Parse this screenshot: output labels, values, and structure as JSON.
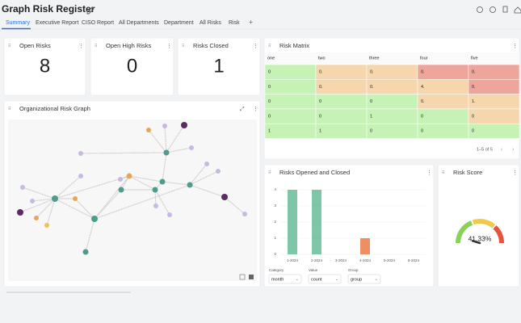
{
  "header": {
    "title": "Graph Risk Register"
  },
  "tabs": [
    "Summary",
    "Executive Report",
    "CISO Report",
    "All Departments",
    "Department",
    "All Risks",
    "Risk"
  ],
  "kpis": [
    {
      "title": "Open Risks",
      "value": 8
    },
    {
      "title": "Open High Risks",
      "value": 0
    },
    {
      "title": "Risks Closed",
      "value": 1
    }
  ],
  "risk_matrix": {
    "title": "Risk Matrix",
    "columns": [
      "one",
      "two",
      "three",
      "four",
      "five"
    ],
    "rows": [
      [
        "0",
        "0.",
        "0.",
        "0.",
        "0."
      ],
      [
        "0",
        "0.",
        "0.",
        "4.",
        "0."
      ],
      [
        "0",
        "0",
        "0",
        "0.",
        "1."
      ],
      [
        "0",
        "0",
        "1",
        "0",
        "0"
      ],
      [
        "1",
        "1",
        "0",
        "0",
        "0"
      ]
    ],
    "colors": [
      [
        "#c7f2b6",
        "#f6d7ad",
        "#f6d7ad",
        "#eea59c",
        "#eea59c"
      ],
      [
        "#c7f2b6",
        "#f6d7ad",
        "#f6d7ad",
        "#f6d7ad",
        "#eea59c"
      ],
      [
        "#c7f2b6",
        "#c7f2b6",
        "#c7f2b6",
        "#f6d7ad",
        "#f6d7ad"
      ],
      [
        "#c7f2b6",
        "#c7f2b6",
        "#c7f2b6",
        "#c7f2b6",
        "#f6d7ad"
      ],
      [
        "#c7f2b6",
        "#c7f2b6",
        "#c7f2b6",
        "#c7f2b6",
        "#c7f2b6"
      ]
    ],
    "pagination": "1–5 of 5"
  },
  "graph": {
    "title": "Organizational Risk Graph"
  },
  "chart_data": {
    "type": "bar",
    "title": "Risks Opened and Closed",
    "categories": [
      "1-2024",
      "2-2024",
      "3-2024",
      "4-2024",
      "5-2024",
      "6-2024"
    ],
    "series": [
      {
        "color": "#7fc6a8",
        "values": [
          4,
          4,
          null,
          null,
          null,
          null
        ]
      },
      {
        "color": "#ec8f62",
        "values": [
          null,
          null,
          null,
          1,
          null,
          null
        ]
      }
    ],
    "ylim": [
      0,
      4
    ],
    "yticks": [
      0,
      1,
      2,
      3,
      4
    ],
    "grid": true
  },
  "controls": [
    {
      "label": "Category",
      "value": "month"
    },
    {
      "label": "Value",
      "value": "count"
    },
    {
      "label": "Group",
      "value": "group"
    }
  ],
  "risk_score": {
    "title": "Risk Score",
    "value": 41.33,
    "value_label": "41.33%"
  }
}
